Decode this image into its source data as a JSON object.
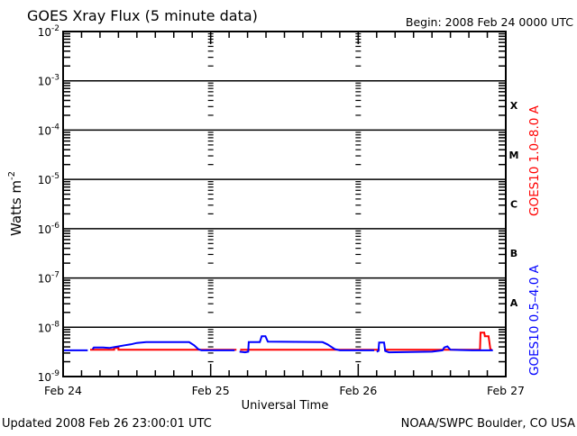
{
  "chart_data": {
    "type": "line",
    "title": "GOES Xray Flux (5 minute data)",
    "begin_label": "Begin:  2008 Feb 24 0000 UTC",
    "xlabel": "Universal Time",
    "ylabel": "Watts m",
    "ylabel_exp": "-2",
    "y_scale": "log",
    "ylim": [
      1e-09,
      0.01
    ],
    "y_ticks": [
      {
        "base": "10",
        "exp": "-2",
        "v": -2
      },
      {
        "base": "10",
        "exp": "-3",
        "v": -3
      },
      {
        "base": "10",
        "exp": "-4",
        "v": -4
      },
      {
        "base": "10",
        "exp": "-5",
        "v": -5
      },
      {
        "base": "10",
        "exp": "-6",
        "v": -6
      },
      {
        "base": "10",
        "exp": "-7",
        "v": -7
      },
      {
        "base": "10",
        "exp": "-8",
        "v": -8
      },
      {
        "base": "10",
        "exp": "-9",
        "v": -9
      }
    ],
    "x_unit": "hours since Feb 24 0000 UTC",
    "xlim": [
      0,
      72
    ],
    "x_ticks": [
      {
        "label": "Feb 24",
        "h": 0
      },
      {
        "label": "Feb 25",
        "h": 24
      },
      {
        "label": "Feb 26",
        "h": 48
      },
      {
        "label": "Feb 27",
        "h": 72
      }
    ],
    "flare_classes": [
      {
        "label": "X",
        "v": -3.5
      },
      {
        "label": "M",
        "v": -4.5
      },
      {
        "label": "C",
        "v": -5.5
      },
      {
        "label": "B",
        "v": -6.5
      },
      {
        "label": "A",
        "v": -7.5
      }
    ],
    "grid": "horizontal at decades",
    "series": [
      {
        "name": "GOES10 1.0–8.0 A",
        "color": "#ff0000",
        "segments": [
          [
            [
              4.4,
              3.5e-09
            ],
            [
              8.3,
              3.5e-09
            ],
            [
              8.3,
              3.8e-09
            ],
            [
              9.0,
              3.8e-09
            ],
            [
              9.0,
              3.5e-09
            ],
            [
              28.2,
              3.5e-09
            ]
          ],
          [
            [
              28.8,
              3.5e-09
            ],
            [
              51.5,
              3.5e-09
            ]
          ],
          [
            [
              52.2,
              3.5e-09
            ],
            [
              67.8,
              3.5e-09
            ],
            [
              67.9,
              7.8e-09
            ],
            [
              68.5,
              7.8e-09
            ],
            [
              68.6,
              6.6e-09
            ],
            [
              69.2,
              6.6e-09
            ],
            [
              69.5,
              3.5e-09
            ],
            [
              69.8,
              3.5e-09
            ]
          ]
        ]
      },
      {
        "name": "GOES10 0.5–4.0 A",
        "color": "#0000ff",
        "segments": [
          [
            [
              0,
              3.4e-09
            ],
            [
              4.0,
              3.4e-09
            ]
          ],
          [
            [
              4.8,
              3.6e-09
            ],
            [
              5.0,
              3.9e-09
            ],
            [
              6.5,
              3.9e-09
            ],
            [
              7.5,
              3.8e-09
            ],
            [
              8.5,
              4e-09
            ],
            [
              10.0,
              4.3e-09
            ],
            [
              11.0,
              4.5e-09
            ],
            [
              12.0,
              4.8e-09
            ],
            [
              13.5,
              5e-09
            ],
            [
              20.5,
              5e-09
            ],
            [
              21.3,
              4.3e-09
            ],
            [
              22.0,
              3.6e-09
            ],
            [
              22.5,
              3.4e-09
            ],
            [
              27.9,
              3.4e-09
            ]
          ],
          [
            [
              28.7,
              3.2e-09
            ],
            [
              29.6,
              3.1e-09
            ],
            [
              30.1,
              3.2e-09
            ],
            [
              30.2,
              5e-09
            ],
            [
              32.0,
              5e-09
            ],
            [
              32.3,
              6.6e-09
            ],
            [
              32.9,
              6.6e-09
            ],
            [
              33.3,
              5.1e-09
            ],
            [
              42.2,
              5e-09
            ],
            [
              43.0,
              4.5e-09
            ],
            [
              44.2,
              3.6e-09
            ],
            [
              45.0,
              3.4e-09
            ],
            [
              50.6,
              3.4e-09
            ]
          ],
          [
            [
              51.0,
              3.2e-09
            ],
            [
              51.3,
              3.3e-09
            ],
            [
              51.4,
              4.9e-09
            ],
            [
              52.2,
              4.9e-09
            ],
            [
              52.4,
              3.3e-09
            ],
            [
              53.0,
              3.1e-09
            ],
            [
              60.0,
              3.2e-09
            ],
            [
              61.7,
              3.4e-09
            ],
            [
              62.0,
              3.9e-09
            ],
            [
              62.5,
              4.1e-09
            ],
            [
              63.0,
              3.5e-09
            ],
            [
              66.5,
              3.4e-09
            ],
            [
              69.9,
              3.4e-09
            ]
          ]
        ]
      }
    ],
    "footer_left": "Updated 2008 Feb 26 23:00:01 UTC",
    "footer_right": "NOAA/SWPC Boulder, CO USA"
  }
}
